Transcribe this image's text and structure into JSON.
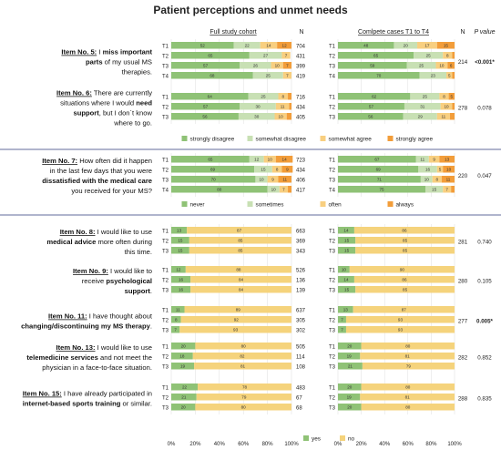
{
  "title": "Patient perceptions and unmet needs",
  "colors": {
    "strongly_disagree": "#8fc276",
    "somewhat_disagree": "#c8e0b4",
    "somewhat_agree": "#f8cf80",
    "strongly_agree": "#f29d3a",
    "never": "#8fc276",
    "sometimes": "#c8e0b4",
    "often": "#f8cf80",
    "always": "#f29d3a",
    "yes": "#8fc276",
    "no": "#f5d37c",
    "divider": "#2d3a7a"
  },
  "headers": {
    "left": "Full study cohort",
    "right": "Comlpete cases T1 to T4",
    "n": "N",
    "n_right": "N",
    "p": "P value"
  },
  "chart_data": {
    "type": "bar",
    "stacked": true,
    "orientation": "horizontal",
    "xlim": [
      0,
      100
    ],
    "x_ticks": [
      "0%",
      "20%",
      "40%",
      "60%",
      "80%",
      "100%"
    ],
    "sections": [
      {
        "legend": [
          "strongly disagree",
          "somewhat disagree",
          "somewhat agree",
          "strongly agree"
        ],
        "items": [
          {
            "label": [
              [
                {
                  "t": "Item No. 5:",
                  "s": "bu"
                },
                {
                  "t": " I ",
                  "s": "n"
                },
                {
                  "t": "miss important",
                  "s": "b"
                }
              ],
              [
                {
                  "t": "parts",
                  "s": "b"
                },
                {
                  "t": " of my usual MS",
                  "s": "n"
                }
              ],
              [
                {
                  "t": "therapies.",
                  "s": "n"
                }
              ]
            ],
            "full": [
              {
                "time": "T1",
                "values": [
                  52,
                  22,
                  14,
                  12
                ],
                "n": "704"
              },
              {
                "time": "T2",
                "values": [
                  65,
                  27,
                  7,
                  0
                ],
                "n": "431"
              },
              {
                "time": "T3",
                "values": [
                  57,
                  26,
                  10,
                  7
                ],
                "n": "399"
              },
              {
                "time": "T4",
                "values": [
                  68,
                  25,
                  7,
                  0
                ],
                "n": "419"
              }
            ],
            "complete": [
              {
                "time": "T1",
                "values": [
                  48,
                  20,
                  17,
                  15
                ]
              },
              {
                "time": "T2",
                "values": [
                  65,
                  25,
                  8,
                  2
                ]
              },
              {
                "time": "T3",
                "values": [
                  59,
                  25,
                  10,
                  6
                ]
              },
              {
                "time": "T4",
                "values": [
                  70,
                  23,
                  5,
                  2
                ]
              }
            ],
            "n_complete": "214",
            "p": "<0.001*",
            "p_bold": true
          },
          {
            "label": [
              [
                {
                  "t": "Item No. 6:",
                  "s": "bu"
                },
                {
                  "t": " There are currently",
                  "s": "n"
                }
              ],
              [
                {
                  "t": "situations where I would ",
                  "s": "n"
                },
                {
                  "t": "need",
                  "s": "b"
                }
              ],
              [
                {
                  "t": "support",
                  "s": "b"
                },
                {
                  "t": ", but I don´t know",
                  "s": "n"
                }
              ],
              [
                {
                  "t": "where to go.",
                  "s": "n"
                }
              ]
            ],
            "full": [
              {
                "time": "T1",
                "values": [
                  64,
                  25,
                  8,
                  3
                ],
                "n": "716"
              },
              {
                "time": "T2",
                "values": [
                  57,
                  30,
                  11,
                  2
                ],
                "n": "434"
              },
              {
                "time": "T3",
                "values": [
                  56,
                  30,
                  10,
                  4
                ],
                "n": "405"
              }
            ],
            "complete": [
              {
                "time": "T1",
                "values": [
                  62,
                  25,
                  8,
                  5
                ]
              },
              {
                "time": "T2",
                "values": [
                  57,
                  31,
                  10,
                  2
                ]
              },
              {
                "time": "T3",
                "values": [
                  56,
                  29,
                  11,
                  4
                ]
              }
            ],
            "n_complete": "278",
            "p": "0.078",
            "p_bold": false
          }
        ]
      },
      {
        "legend": [
          "never",
          "sometimes",
          "often",
          "always"
        ],
        "items": [
          {
            "label": [
              [
                {
                  "t": "Item No. 7:",
                  "s": "bu"
                },
                {
                  "t": " How often did it happen",
                  "s": "n"
                }
              ],
              [
                {
                  "t": "in the last few days that you were",
                  "s": "n"
                }
              ],
              [
                {
                  "t": "dissatisfied with the medical care",
                  "s": "b"
                }
              ],
              [
                {
                  "t": "you received for your MS?",
                  "s": "n"
                }
              ]
            ],
            "full": [
              {
                "time": "T1",
                "values": [
                  65,
                  12,
                  10,
                  14
                ],
                "n": "723"
              },
              {
                "time": "T2",
                "values": [
                  69,
                  15,
                  8,
                  9
                ],
                "n": "434"
              },
              {
                "time": "T3",
                "values": [
                  70,
                  10,
                  9,
                  11
                ],
                "n": "406"
              },
              {
                "time": "T4",
                "values": [
                  80,
                  10,
                  7,
                  3
                ],
                "n": "417"
              }
            ],
            "complete": [
              {
                "time": "T1",
                "values": [
                  67,
                  11,
                  9,
                  13
                ]
              },
              {
                "time": "T2",
                "values": [
                  69,
                  16,
                  5,
                  10
                ]
              },
              {
                "time": "T3",
                "values": [
                  71,
                  10,
                  8,
                  11
                ]
              },
              {
                "time": "T4",
                "values": [
                  75,
                  15,
                  7,
                  3
                ]
              }
            ],
            "n_complete": "220",
            "p": "0.047",
            "p_bold": false
          }
        ]
      },
      {
        "legend": [
          "yes",
          "no"
        ],
        "items": [
          {
            "label": [
              [
                {
                  "t": "Item No. 8:",
                  "s": "bu"
                },
                {
                  "t": " I would like to use",
                  "s": "n"
                }
              ],
              [
                {
                  "t": "medical advice",
                  "s": "b"
                },
                {
                  "t": " more often during",
                  "s": "n"
                }
              ],
              [
                {
                  "t": "this time.",
                  "s": "n"
                }
              ]
            ],
            "full": [
              {
                "time": "T1",
                "values": [
                  13,
                  87
                ],
                "n": "663"
              },
              {
                "time": "T2",
                "values": [
                  15,
                  85
                ],
                "n": "369"
              },
              {
                "time": "T3",
                "values": [
                  15,
                  85
                ],
                "n": "343"
              }
            ],
            "complete": [
              {
                "time": "T1",
                "values": [
                  14,
                  86
                ]
              },
              {
                "time": "T2",
                "values": [
                  15,
                  85
                ]
              },
              {
                "time": "T3",
                "values": [
                  15,
                  85
                ]
              }
            ],
            "n_complete": "281",
            "p": "0.740",
            "p_bold": false
          },
          {
            "label": [
              [
                {
                  "t": "Item No. 9:",
                  "s": "bu"
                },
                {
                  "t": " I would like to",
                  "s": "n"
                }
              ],
              [
                {
                  "t": "receive ",
                  "s": "n"
                },
                {
                  "t": "psychological",
                  "s": "b"
                }
              ],
              [
                {
                  "t": "support",
                  "s": "b"
                },
                {
                  "t": ".",
                  "s": "n"
                }
              ]
            ],
            "full": [
              {
                "time": "T1",
                "values": [
                  12,
                  88
                ],
                "n": "526"
              },
              {
                "time": "T2",
                "values": [
                  16,
                  84
                ],
                "n": "136"
              },
              {
                "time": "T3",
                "values": [
                  16,
                  84
                ],
                "n": "139"
              }
            ],
            "complete": [
              {
                "time": "T1",
                "values": [
                  10,
                  90
                ]
              },
              {
                "time": "T2",
                "values": [
                  14,
                  86
                ]
              },
              {
                "time": "T3",
                "values": [
                  15,
                  85
                ]
              }
            ],
            "n_complete": "280",
            "p": "0.105",
            "p_bold": false
          },
          {
            "label": [
              [
                {
                  "t": "Item No. 11:",
                  "s": "bu"
                },
                {
                  "t": " I have thought about",
                  "s": "n"
                }
              ],
              [
                {
                  "t": "changing/discontinuing my MS therapy",
                  "s": "b"
                },
                {
                  "t": ".",
                  "s": "n"
                }
              ]
            ],
            "full": [
              {
                "time": "T1",
                "values": [
                  11,
                  89
                ],
                "n": "637"
              },
              {
                "time": "T2",
                "values": [
                  8,
                  92
                ],
                "n": "305"
              },
              {
                "time": "T3",
                "values": [
                  7,
                  93
                ],
                "n": "302"
              }
            ],
            "complete": [
              {
                "time": "T1",
                "values": [
                  13,
                  87
                ]
              },
              {
                "time": "T2",
                "values": [
                  7,
                  93
                ]
              },
              {
                "time": "T3",
                "values": [
                  7,
                  93
                ]
              }
            ],
            "n_complete": "277",
            "p": "0.005*",
            "p_bold": true
          },
          {
            "label": [
              [
                {
                  "t": "Item No. 13:",
                  "s": "bu"
                },
                {
                  "t": " I would like to use",
                  "s": "n"
                }
              ],
              [
                {
                  "t": "telemedicine services",
                  "s": "b"
                },
                {
                  "t": " and not meet the",
                  "s": "n"
                }
              ],
              [
                {
                  "t": "physician in a face-to-face situation.",
                  "s": "n"
                }
              ]
            ],
            "full": [
              {
                "time": "T1",
                "values": [
                  20,
                  80
                ],
                "n": "505"
              },
              {
                "time": "T2",
                "values": [
                  18,
                  82
                ],
                "n": "114"
              },
              {
                "time": "T3",
                "values": [
                  19,
                  81
                ],
                "n": "108"
              }
            ],
            "complete": [
              {
                "time": "T1",
                "values": [
                  20,
                  80
                ]
              },
              {
                "time": "T2",
                "values": [
                  19,
                  81
                ]
              },
              {
                "time": "T3",
                "values": [
                  21,
                  79
                ]
              }
            ],
            "n_complete": "282",
            "p": "0.852",
            "p_bold": false
          },
          {
            "label": [
              [
                {
                  "t": "Item No. 15:",
                  "s": "bu"
                },
                {
                  "t": " I have already participated in",
                  "s": "n"
                }
              ],
              [
                {
                  "t": "internet-based sports training",
                  "s": "b"
                },
                {
                  "t": " or similar.",
                  "s": "n"
                }
              ]
            ],
            "full": [
              {
                "time": "T1",
                "values": [
                  22,
                  78
                ],
                "n": "483"
              },
              {
                "time": "T2",
                "values": [
                  21,
                  79
                ],
                "n": "67"
              },
              {
                "time": "T3",
                "values": [
                  20,
                  80
                ],
                "n": "68"
              }
            ],
            "complete": [
              {
                "time": "T1",
                "values": [
                  20,
                  80
                ]
              },
              {
                "time": "T2",
                "values": [
                  19,
                  81
                ]
              },
              {
                "time": "T3",
                "values": [
                  20,
                  80
                ]
              }
            ],
            "n_complete": "288",
            "p": "0.835",
            "p_bold": false
          }
        ]
      }
    ]
  }
}
